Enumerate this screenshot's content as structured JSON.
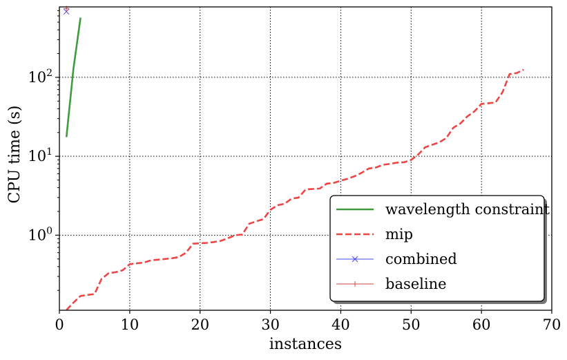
{
  "chart_data": {
    "type": "line",
    "xlabel": "instances",
    "ylabel": "CPU time (s)",
    "xlim": [
      0,
      70
    ],
    "ylim": [
      0.112,
      780
    ],
    "yscale": "log",
    "grid": true,
    "grid_style": "dotted",
    "legend_position": "lower-right",
    "x_ticks": [
      {
        "value": 0,
        "label": "0"
      },
      {
        "value": 10,
        "label": "10"
      },
      {
        "value": 20,
        "label": "20"
      },
      {
        "value": 30,
        "label": "30"
      },
      {
        "value": 40,
        "label": "40"
      },
      {
        "value": 50,
        "label": "50"
      },
      {
        "value": 60,
        "label": "60"
      },
      {
        "value": 70,
        "label": "70"
      }
    ],
    "y_ticks": [
      {
        "value": 1,
        "base": "10",
        "exp": "0"
      },
      {
        "value": 10,
        "base": "10",
        "exp": "1"
      },
      {
        "value": 100,
        "base": "10",
        "exp": "2"
      }
    ],
    "series": [
      {
        "name": "wavelength constraint",
        "color": "#3f9b3f",
        "style": "solid",
        "x": [
          1,
          2,
          3
        ],
        "y": [
          17.5,
          130,
          570
        ]
      },
      {
        "name": "mip",
        "color": "#ef4444",
        "style": "dashed",
        "x": [
          1,
          2,
          3,
          4,
          5,
          6,
          7,
          8,
          9,
          10,
          11,
          12,
          13,
          14,
          15,
          16,
          17,
          18,
          19,
          20,
          21,
          22,
          23,
          24,
          25,
          26,
          27,
          28,
          29,
          30,
          31,
          32,
          33,
          34,
          35,
          36,
          37,
          38,
          39,
          40,
          41,
          42,
          43,
          44,
          45,
          46,
          47,
          48,
          49,
          50,
          51,
          52,
          53,
          54,
          55,
          56,
          57,
          58,
          59,
          60,
          61,
          62,
          63,
          64,
          65,
          66
        ],
        "y": [
          0.113,
          0.14,
          0.17,
          0.175,
          0.18,
          0.28,
          0.33,
          0.34,
          0.36,
          0.43,
          0.44,
          0.45,
          0.48,
          0.49,
          0.5,
          0.51,
          0.53,
          0.6,
          0.78,
          0.79,
          0.8,
          0.82,
          0.85,
          0.92,
          1.0,
          1.02,
          1.4,
          1.5,
          1.6,
          2.1,
          2.4,
          2.5,
          2.9,
          3.0,
          3.8,
          3.85,
          3.9,
          4.5,
          4.6,
          4.9,
          5.2,
          5.6,
          6.2,
          7.0,
          7.2,
          7.8,
          8.0,
          8.3,
          8.4,
          9.0,
          10.5,
          13.0,
          14.0,
          15.0,
          17.0,
          23.0,
          26.0,
          32.0,
          37.0,
          46.0,
          47.0,
          48.0,
          65.0,
          110.0,
          113.0,
          125.0
        ]
      },
      {
        "name": "combined",
        "color": "#4444ff",
        "style": "solid",
        "marker": "x",
        "x": [
          1
        ],
        "y": [
          680
        ]
      },
      {
        "name": "baseline",
        "color": "#cc4444",
        "style": "solid",
        "marker": "+",
        "x": [
          1
        ],
        "y": [
          740
        ]
      }
    ]
  }
}
